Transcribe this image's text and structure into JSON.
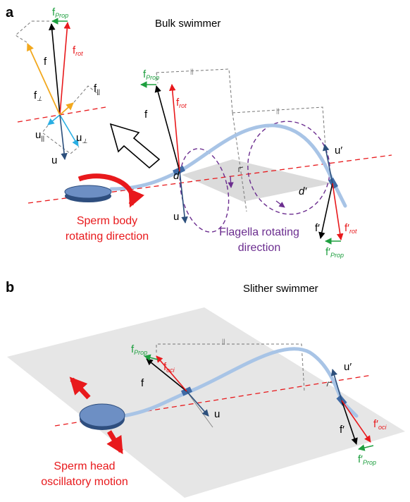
{
  "panel_a": {
    "letter": "a",
    "title": "Bulk swimmer",
    "parallel_mark": "||",
    "inset": {
      "f_prop": {
        "text": "f",
        "sub": "Prop"
      },
      "f": {
        "text": "f"
      },
      "f_rot": {
        "text": "f",
        "sub": "rot"
      },
      "f_perp": {
        "text": "f",
        "sub": "⊥"
      },
      "f_par": {
        "text": "f",
        "sub": "||"
      },
      "u_par": {
        "text": "u",
        "sub": "||"
      },
      "u_perp": {
        "text": "u",
        "sub": "⊥"
      },
      "u": {
        "text": "u"
      }
    },
    "vectors": {
      "f_prop": {
        "text": "f",
        "sub": "Prop"
      },
      "f": {
        "text": "f"
      },
      "f_rot": {
        "text": "f",
        "sub": "rot"
      },
      "u": {
        "text": "u"
      },
      "d": "d",
      "d_prime": "d′",
      "u_prime": {
        "text": "u′"
      },
      "f_prime": {
        "text": "f′"
      },
      "f_rot_prime": {
        "text": "f′",
        "sub": "rot"
      },
      "f_prop_prime": {
        "text": "f′",
        "sub": "Prop"
      }
    },
    "body_caption": [
      "Sperm body",
      "rotating direction"
    ],
    "flagella_caption": [
      "Flagella rotating",
      "direction"
    ]
  },
  "panel_b": {
    "letter": "b",
    "title": "Slither swimmer",
    "parallel_mark": "||",
    "vectors": {
      "f_prop": {
        "text": "f",
        "sub": "Prop"
      },
      "f": {
        "text": "f"
      },
      "f_oci": {
        "text": "f",
        "sub": "oci"
      },
      "u": {
        "text": "u"
      },
      "u_prime": {
        "text": "u′"
      },
      "f_prime": {
        "text": "f′"
      },
      "f_oci_prime": {
        "text": "f′",
        "sub": "oci"
      },
      "f_prop_prime": {
        "text": "f′",
        "sub": "Prop"
      }
    },
    "head_caption": [
      "Sperm head",
      "oscillatory motion"
    ]
  }
}
